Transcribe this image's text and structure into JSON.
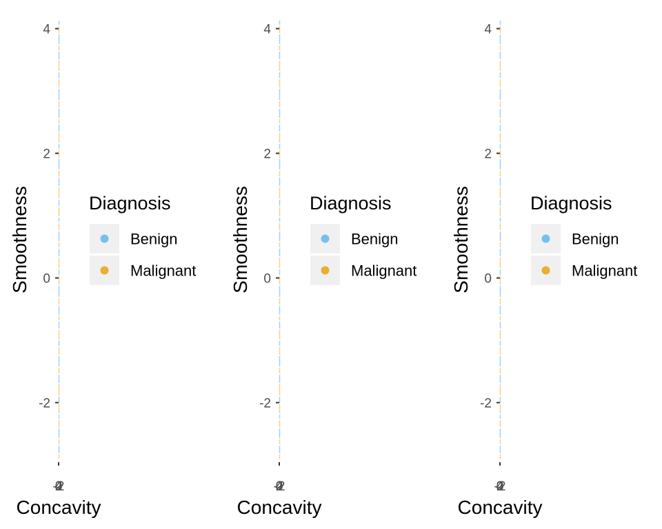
{
  "chart_data": [
    {
      "type": "scatter",
      "xlabel": "Concavity",
      "ylabel": "Smoothness",
      "ylim": [
        -2.9,
        4.15
      ],
      "yticks": [
        "-2",
        "0",
        "2",
        "4"
      ],
      "ytick_values": [
        -2,
        0,
        2,
        4
      ],
      "xticks": [
        "-2",
        "0",
        "2",
        "4"
      ],
      "legend": {
        "title": "Diagnosis",
        "placement": "right"
      },
      "series": [
        {
          "name": "Benign",
          "color": "#56B4E9",
          "x": [],
          "y": []
        },
        {
          "name": "Malignant",
          "color": "#E69F00",
          "x": [],
          "y": []
        }
      ]
    },
    {
      "type": "scatter",
      "xlabel": "Concavity",
      "ylabel": "Smoothness",
      "ylim": [
        -2.9,
        4.15
      ],
      "yticks": [
        "-2",
        "0",
        "2",
        "4"
      ],
      "ytick_values": [
        -2,
        0,
        2,
        4
      ],
      "xticks": [
        "-2",
        "0",
        "2",
        "4"
      ],
      "legend": {
        "title": "Diagnosis",
        "placement": "right"
      },
      "series": [
        {
          "name": "Benign",
          "color": "#56B4E9",
          "x": [],
          "y": []
        },
        {
          "name": "Malignant",
          "color": "#E69F00",
          "x": [],
          "y": []
        }
      ]
    },
    {
      "type": "scatter",
      "xlabel": "Concavity",
      "ylabel": "Smoothness",
      "ylim": [
        -2.9,
        4.15
      ],
      "yticks": [
        "-2",
        "0",
        "2",
        "4"
      ],
      "ytick_values": [
        -2,
        0,
        2,
        4
      ],
      "xticks": [
        "-2",
        "0",
        "2",
        "4"
      ],
      "legend": {
        "title": "Diagnosis",
        "placement": "right"
      },
      "series": [
        {
          "name": "Benign",
          "color": "#56B4E9",
          "x": [],
          "y": []
        },
        {
          "name": "Malignant",
          "color": "#E69F00",
          "x": [],
          "y": []
        }
      ]
    }
  ]
}
